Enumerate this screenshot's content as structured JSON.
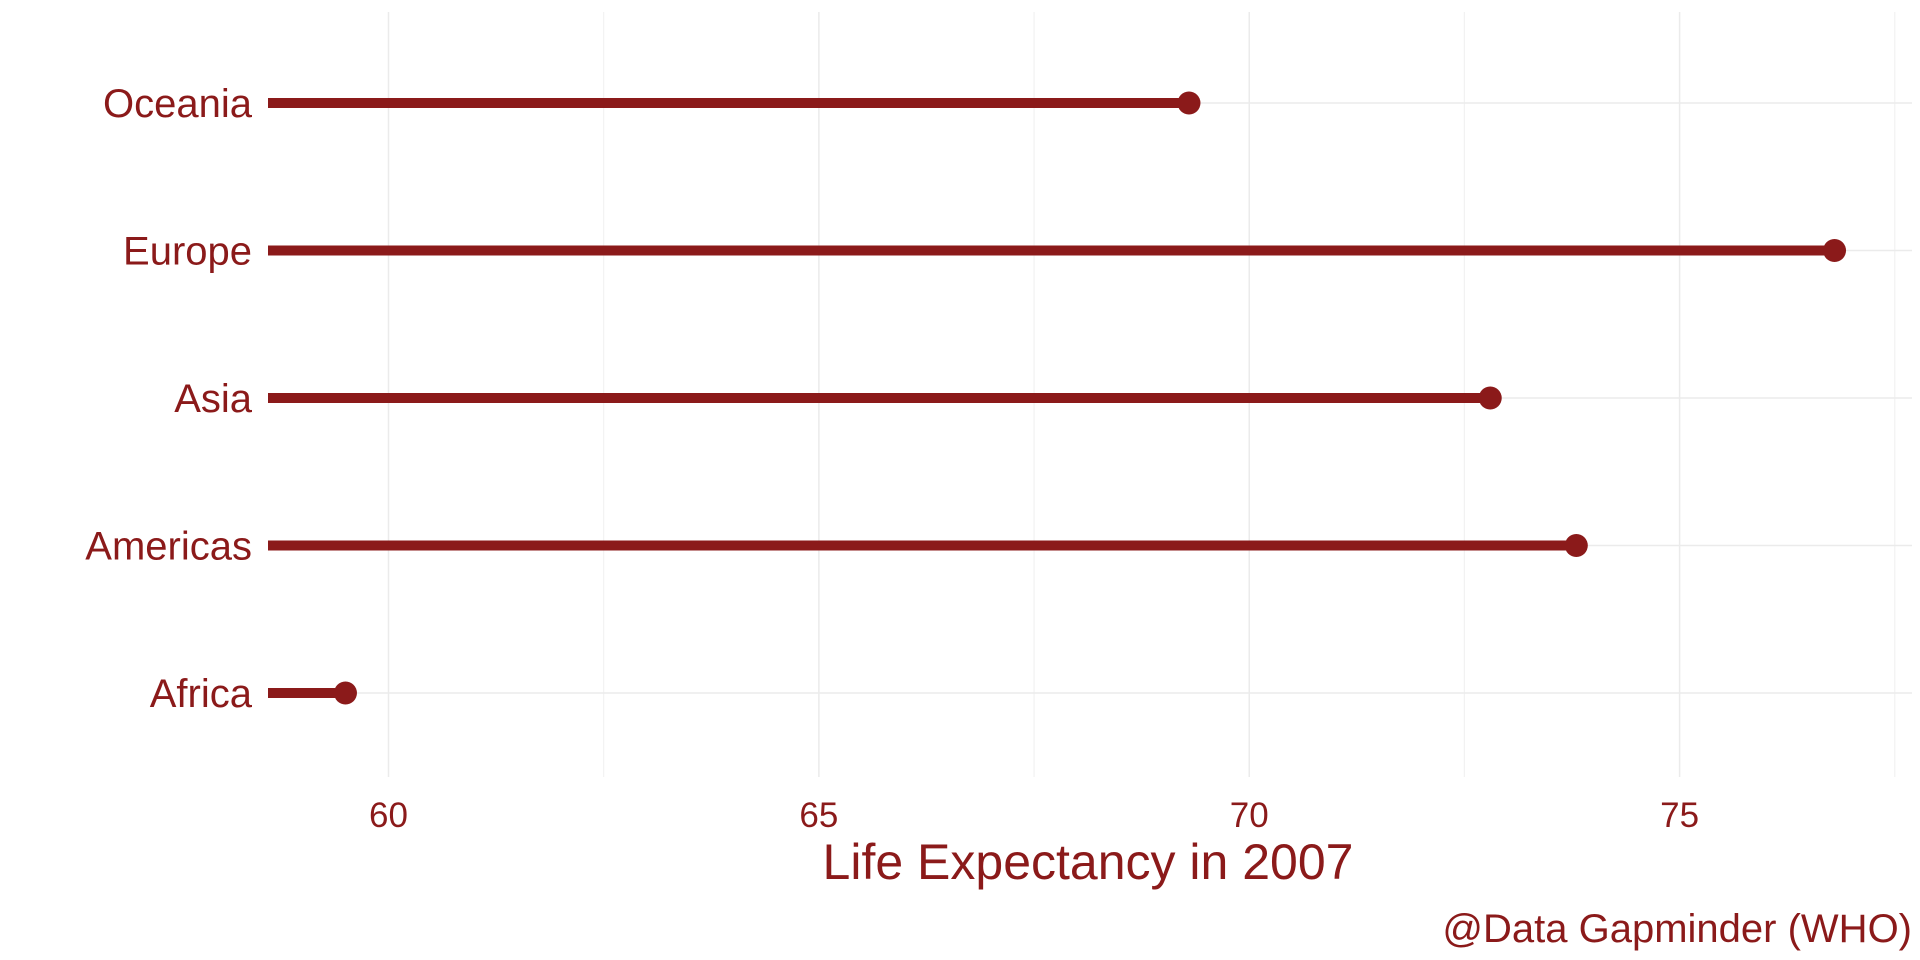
{
  "colors": {
    "accent": "#8b1a1a",
    "grid": "#ebebeb",
    "background": "#ffffff"
  },
  "chart_data": {
    "type": "lollipop",
    "orientation": "horizontal",
    "categories": [
      "Africa",
      "Americas",
      "Asia",
      "Europe",
      "Oceania"
    ],
    "values": [
      59.5,
      73.8,
      72.8,
      76.8,
      69.3
    ],
    "xlabel": "Life Expectancy in 2007",
    "ylabel": "",
    "caption": "@Data Gapminder (WHO)",
    "xlim": [
      58.6,
      77.7
    ],
    "x_ticks": [
      60,
      65,
      70,
      75
    ],
    "x_tick_labels": [
      "60",
      "65",
      "70",
      "75"
    ],
    "grid": true,
    "legend": "none"
  }
}
